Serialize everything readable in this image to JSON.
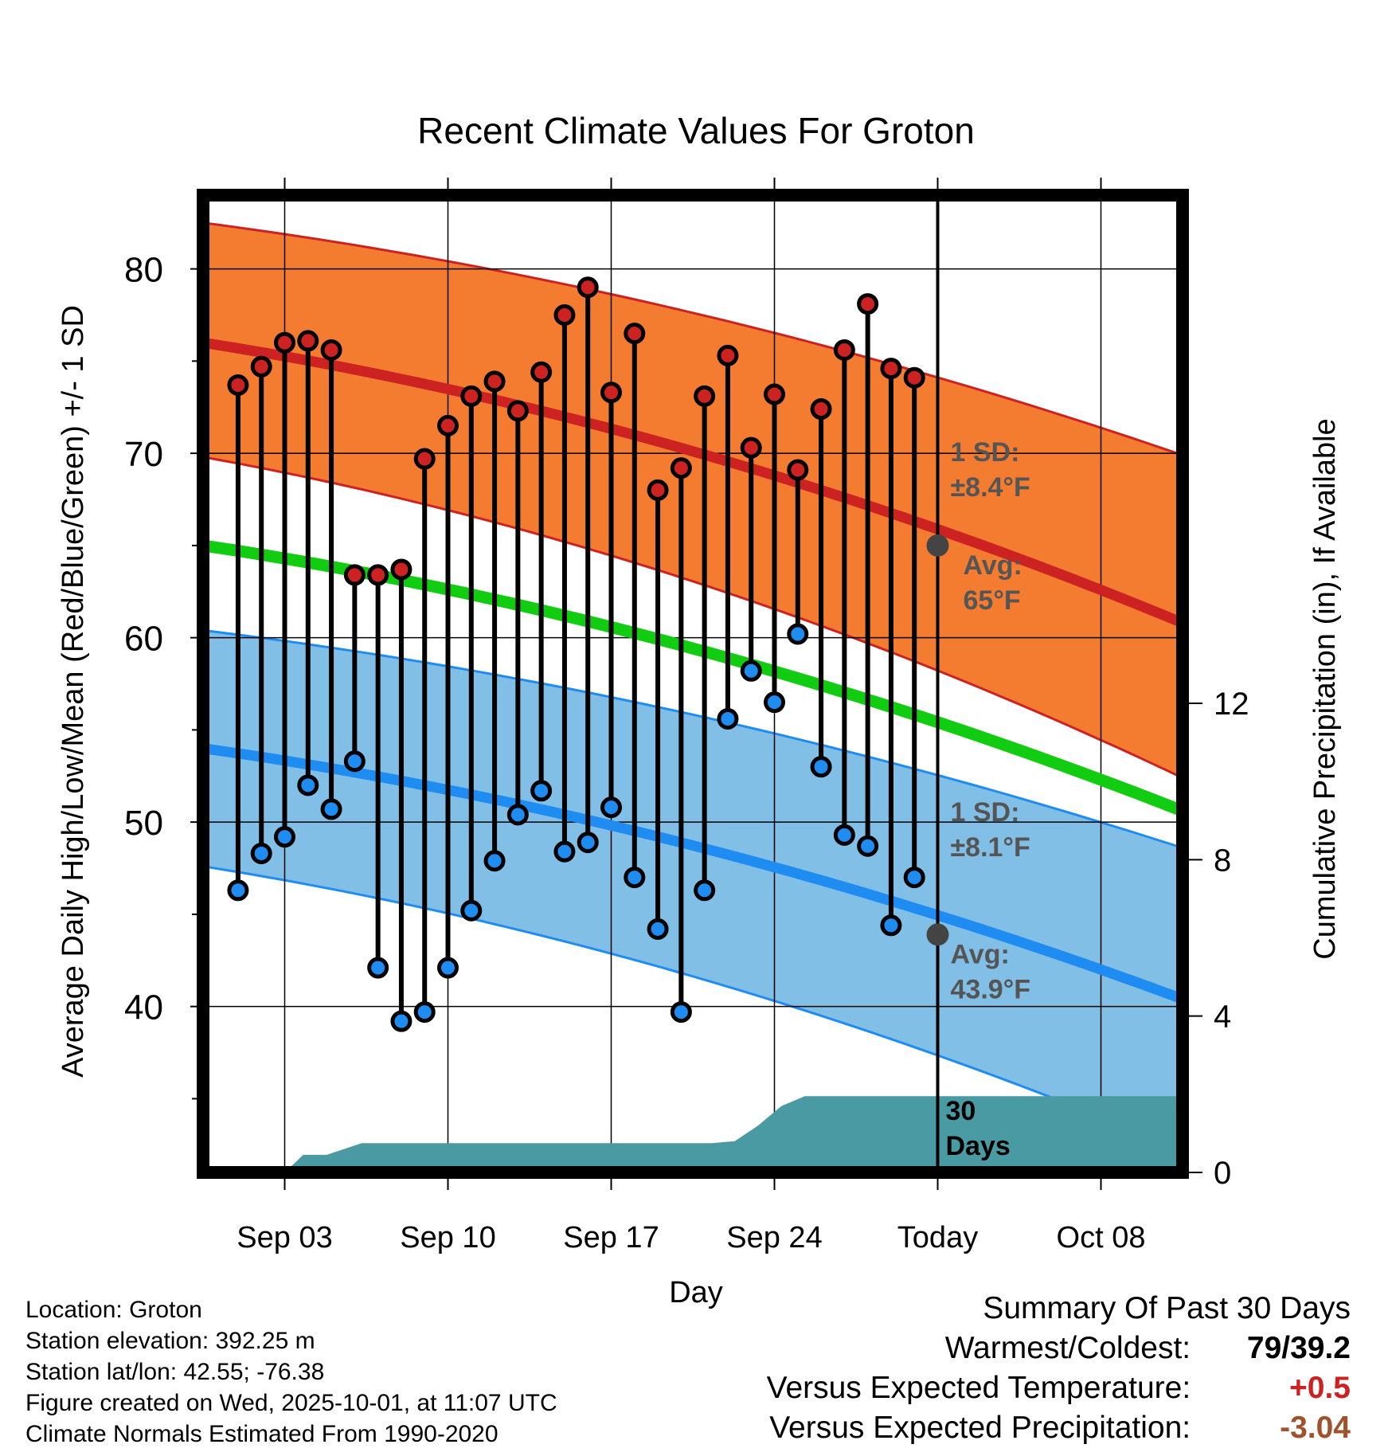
{
  "chart_data": {
    "type": "line",
    "title": "Recent Climate Values For Groton",
    "xlabel": "Day",
    "ylabel_left": "Average Daily High/Low/Mean (Red/Blue/Green) +/- 1 SD",
    "ylabel_right": "Cumulative Precipitation (in), If Available",
    "ylim_left": [
      31,
      84
    ],
    "ylim_right": [
      0,
      25
    ],
    "xlim_days": [
      -0.5,
      41.5
    ],
    "x_ticks": [
      {
        "day": 3,
        "label": "Sep 03"
      },
      {
        "day": 10,
        "label": "Sep 10"
      },
      {
        "day": 17,
        "label": "Sep 17"
      },
      {
        "day": 24,
        "label": "Sep 24"
      },
      {
        "day": 31,
        "label": "Today"
      },
      {
        "day": 38,
        "label": "Oct 08"
      }
    ],
    "y_ticks_left": [
      40,
      50,
      60,
      70,
      80
    ],
    "y_minor_left": [
      35,
      45,
      55,
      65,
      75
    ],
    "y_ticks_right": [
      0,
      4,
      8,
      12
    ],
    "today_day": 31,
    "grid": true,
    "normals": {
      "high_avg": {
        "start": 76.0,
        "end": 60.8
      },
      "high_upper": {
        "start": 82.5,
        "end": 69.9
      },
      "high_lower": {
        "start": 69.8,
        "end": 52.4
      },
      "low_avg": {
        "start": 54.0,
        "end": 40.4
      },
      "low_upper": {
        "start": 60.4,
        "end": 48.6
      },
      "low_lower": {
        "start": 47.6,
        "end": 32.2
      },
      "mean_avg": {
        "start": 65.0,
        "end": 50.6
      }
    },
    "series": [
      {
        "name": "Daily High",
        "color": "#cc2222",
        "days": [
          1,
          2,
          3,
          4,
          5,
          6,
          7,
          8,
          9,
          10,
          11,
          12,
          13,
          14,
          15,
          16,
          17,
          18,
          19,
          20,
          21,
          22,
          23,
          24,
          25,
          26,
          27,
          28,
          29,
          30
        ],
        "values": [
          73.7,
          74.7,
          76.0,
          76.1,
          75.6,
          63.4,
          63.4,
          63.7,
          69.7,
          71.5,
          73.1,
          73.9,
          72.3,
          74.4,
          77.5,
          79.0,
          73.3,
          76.5,
          68.0,
          69.2,
          73.1,
          75.3,
          70.3,
          73.2,
          69.1,
          72.4,
          75.6,
          78.1,
          74.6,
          74.1
        ]
      },
      {
        "name": "Daily Low",
        "color": "#2288dd",
        "days": [
          1,
          2,
          3,
          4,
          5,
          6,
          7,
          8,
          9,
          10,
          11,
          12,
          13,
          14,
          15,
          16,
          17,
          18,
          19,
          20,
          21,
          22,
          23,
          24,
          25,
          26,
          27,
          28,
          29,
          30
        ],
        "values": [
          46.3,
          48.3,
          49.2,
          52.0,
          50.7,
          53.3,
          42.1,
          39.2,
          39.7,
          42.1,
          45.2,
          47.9,
          50.4,
          51.7,
          48.4,
          48.9,
          50.8,
          47.0,
          44.2,
          39.7,
          46.3,
          55.6,
          58.2,
          56.5,
          60.2,
          53.0,
          49.3,
          48.7,
          44.4,
          47.0
        ]
      },
      {
        "name": "Cumulative Precipitation",
        "color": "#4a9aa4",
        "days": [
          -0.5,
          0.5,
          3.0,
          3.8,
          4.8,
          6.3,
          7.3,
          8.3,
          9.3,
          10.3,
          11.3,
          12.3,
          13.3,
          14.3,
          15.3,
          16.3,
          17.3,
          18.3,
          19.3,
          20.3,
          21.3,
          22.3,
          23.3,
          24.3,
          25.3,
          26.3,
          27.3,
          28.3,
          29.3,
          30.3,
          31,
          41.5
        ],
        "values": [
          0,
          0,
          0,
          0.45,
          0.45,
          0.75,
          0.75,
          0.75,
          0.75,
          0.75,
          0.75,
          0.75,
          0.75,
          0.75,
          0.75,
          0.75,
          0.75,
          0.75,
          0.75,
          0.75,
          0.75,
          0.8,
          1.2,
          1.7,
          1.95,
          1.95,
          1.95,
          1.95,
          1.95,
          1.95,
          1.95,
          1.95
        ]
      }
    ],
    "annotations": {
      "high_sd": [
        "1 SD:",
        "±8.4°F"
      ],
      "high_avg": [
        "Avg:",
        "65°F"
      ],
      "low_sd": [
        "1 SD:",
        "±8.1°F"
      ],
      "low_avg": [
        "Avg:",
        "43.9°F"
      ],
      "today_days": [
        "30",
        "Days"
      ]
    },
    "today_markers": {
      "high_avg": 65.0,
      "low_avg": 43.9
    }
  },
  "info": {
    "location": "Location: Groton",
    "elevation": "Station elevation: 392.25 m",
    "latlon": "Station lat/lon: 42.55; -76.38",
    "created": "Figure created on Wed, 2025-10-01, at 11:07 UTC",
    "normals": "Climate Normals Estimated From 1990-2020"
  },
  "summary": {
    "title": "Summary Of Past 30 Days",
    "warmest_label": "Warmest/Coldest:",
    "warmest_value": "79/39.2",
    "temp_label": "Versus Expected Temperature:",
    "temp_value": "+0.5",
    "precip_label": "Versus Expected Precipitation:",
    "precip_value": "-3.04"
  },
  "colors": {
    "high_band": "#f47c30",
    "high_line": "#cc2222",
    "low_band": "#82bfe6",
    "low_line": "#1f8cf2",
    "mean_line": "#11cc11",
    "precip": "#4a9aa4",
    "annotation": "#555555",
    "temp_value": "#cc2222",
    "precip_value": "#a0522d"
  }
}
